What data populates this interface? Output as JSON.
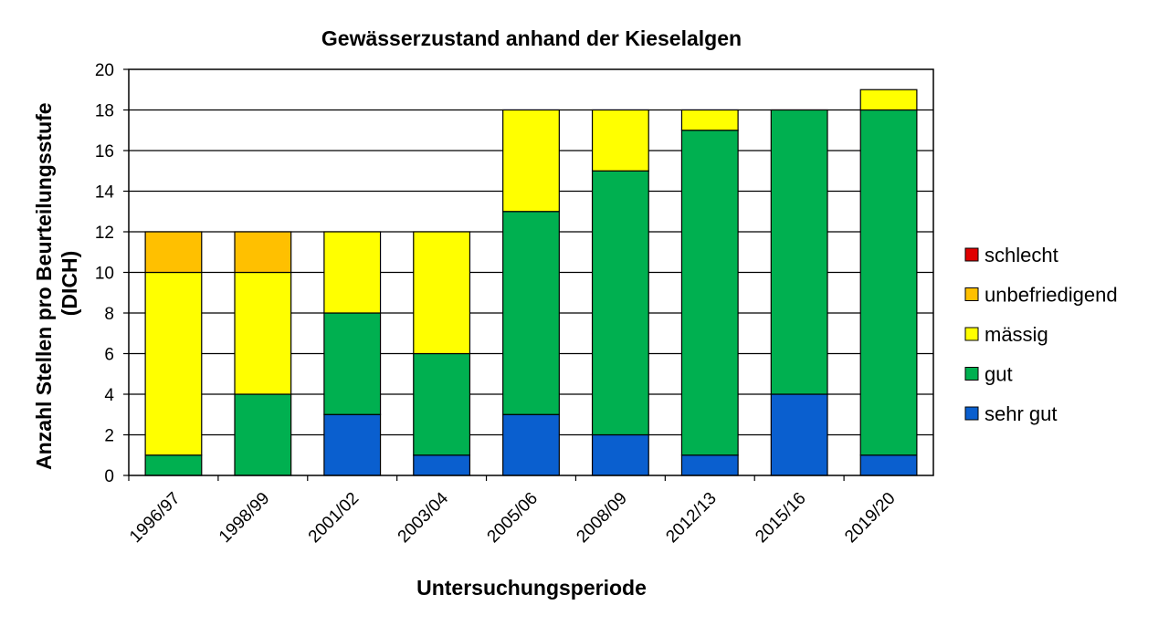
{
  "chart_data": {
    "type": "bar",
    "stacked": true,
    "title": "Gewässerzustand anhand der Kieselalgen",
    "xlabel": "Untersuchungsperiode",
    "ylabel": "Anzahl Stellen pro Beurteilungsstufe (DICH)",
    "ylabel_lines": [
      "Anzahl Stellen pro Beurteilungsstufe",
      "(DICH)"
    ],
    "ylim": [
      0,
      20
    ],
    "yticks": [
      0,
      2,
      4,
      6,
      8,
      10,
      12,
      14,
      16,
      18,
      20
    ],
    "grid": true,
    "legend_position": "right",
    "categories": [
      "1996/97",
      "1998/99",
      "2001/02",
      "2003/04",
      "2005/06",
      "2008/09",
      "2012/13",
      "2015/16",
      "2019/20"
    ],
    "series": [
      {
        "name": "sehr gut",
        "color": "#0a5fcf",
        "values": [
          0,
          0,
          3,
          1,
          3,
          2,
          1,
          4,
          1
        ]
      },
      {
        "name": "gut",
        "color": "#00b050",
        "values": [
          1,
          4,
          5,
          5,
          10,
          13,
          16,
          14,
          17
        ]
      },
      {
        "name": "mässig",
        "color": "#ffff00",
        "values": [
          9,
          6,
          4,
          6,
          5,
          3,
          1,
          0,
          1
        ]
      },
      {
        "name": "unbefriedigend",
        "color": "#ffc000",
        "values": [
          2,
          2,
          0,
          0,
          0,
          0,
          0,
          0,
          0
        ]
      },
      {
        "name": "schlecht",
        "color": "#e00000",
        "values": [
          0,
          0,
          0,
          0,
          0,
          0,
          0,
          0,
          0
        ]
      }
    ]
  }
}
